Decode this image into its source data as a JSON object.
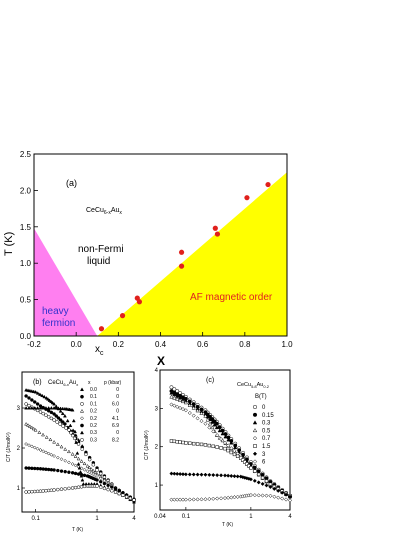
{
  "figure": {
    "panel_a": {
      "label": "(a)",
      "compound": "CeCu",
      "compound_sub1": "6-x",
      "compound_mid": "Au",
      "compound_sub2": "x",
      "xlabel": "X",
      "ylabel": "T (K)",
      "xticks": [
        "-0.2",
        "0.0",
        "0.2",
        "0.4",
        "0.6",
        "0.8",
        "1.0"
      ],
      "yticks": [
        "0.0",
        "0.5",
        "1.0",
        "1.5",
        "2.0",
        "2.5"
      ],
      "xc_label": "x",
      "xc_sub": "c",
      "region_nfl_1": "non-Fermi",
      "region_nfl_2": "liquid",
      "region_hf_1": "heavy",
      "region_hf_2": "fermion",
      "region_af": "AF magnetic order",
      "colors": {
        "heavy_fermion": "#ff7ff0",
        "af": "#ffff00",
        "points": "#e0201c",
        "hf_text": "#3333cc",
        "af_text": "#e02020"
      }
    },
    "panel_b": {
      "label": "(b)",
      "compound": "CeCu",
      "compound_sub1": "6-x",
      "compound_mid": "Au",
      "compound_sub2": "x",
      "col_x": "x",
      "col_p": "p (kbar)",
      "legend_x": [
        "0.0",
        "0.1",
        "0.1",
        "0.2",
        "0.2",
        "0.2",
        "0.3",
        "0.3"
      ],
      "legend_p": [
        "0",
        "0",
        "6.0",
        "0",
        "4.1",
        "6.9",
        "0",
        "8.2"
      ],
      "ylabel": "C/T (J/molK²)",
      "xlabel": "T (K)",
      "xticks": [
        "0.1",
        "1",
        "4"
      ],
      "yticks": [
        "1",
        "2",
        "3"
      ]
    },
    "panel_c": {
      "label": "(c)",
      "compound": "CeCu",
      "compound_sub1": "5.8",
      "compound_mid": "Au",
      "compound_sub2": "0.2",
      "col_b": "B(T)",
      "legend_b": [
        "0",
        "0.15",
        "0.3",
        "0.5",
        "0.7",
        "1.5",
        "3",
        "6"
      ],
      "ylabel": "C/T (J/molK²)",
      "xlabel": "T (K)",
      "xticks": [
        "0.04",
        "0.1",
        "1",
        "4"
      ],
      "yticks": [
        "1",
        "2",
        "3",
        "4"
      ]
    }
  },
  "chart_data": [
    {
      "type": "scatter",
      "title": "",
      "xlabel": "X",
      "ylabel": "T (K)",
      "xlim": [
        -0.2,
        1.0
      ],
      "ylim": [
        0.0,
        2.5
      ],
      "series": [
        {
          "name": "",
          "points": [
            [
              0.12,
              0.1
            ],
            [
              0.22,
              0.28
            ],
            [
              0.29,
              0.52
            ],
            [
              0.3,
              0.47
            ],
            [
              0.5,
              1.15
            ],
            [
              0.5,
              0.96
            ],
            [
              0.66,
              1.48
            ],
            [
              0.67,
              1.4
            ],
            [
              0.81,
              1.9
            ],
            [
              0.91,
              2.08
            ]
          ]
        }
      ],
      "regions": [
        {
          "label": "heavy fermion",
          "boundary_x": [
            -0.2,
            -0.2,
            0.1
          ],
          "boundary_y": [
            1.48,
            0.0,
            0.0
          ]
        },
        {
          "label": "AF magnetic order",
          "boundary_x": [
            0.1,
            1.0,
            1.0
          ],
          "boundary_y": [
            0.0,
            2.25,
            0.0
          ]
        }
      ]
    },
    {
      "type": "scatter",
      "title": "",
      "xlabel": "T (K)",
      "ylabel": "C/T (J/molK²)",
      "xscale": "log",
      "xlim": [
        0.06,
        4.0
      ],
      "ylim": [
        0.4,
        3.9
      ],
      "series": [
        {
          "name": "x=0.0 p=0",
          "marker": "filled-triangle",
          "points": [
            [
              0.07,
              3.45
            ],
            [
              0.1,
              3.4
            ],
            [
              0.15,
              3.25
            ],
            [
              0.2,
              3.1
            ],
            [
              0.3,
              2.8
            ],
            [
              0.5,
              2.2
            ],
            [
              1.0,
              1.45
            ],
            [
              2.0,
              0.95
            ],
            [
              4.0,
              0.65
            ]
          ]
        },
        {
          "name": "x=0.1 p=0",
          "marker": "filled-circle",
          "points": [
            [
              0.07,
              3.3
            ],
            [
              0.12,
              3.05
            ],
            [
              0.2,
              2.85
            ],
            [
              0.3,
              2.6
            ],
            [
              0.5,
              2.15
            ],
            [
              1.0,
              1.5
            ],
            [
              2.0,
              1.0
            ],
            [
              4.0,
              0.7
            ]
          ]
        },
        {
          "name": "x=0.1 p=6.0",
          "marker": "open-circle",
          "points": [
            [
              0.07,
              3.1
            ],
            [
              0.12,
              2.9
            ],
            [
              0.2,
              2.7
            ],
            [
              0.35,
              2.45
            ],
            [
              0.5,
              2.1
            ],
            [
              1.0,
              1.45
            ],
            [
              2.0,
              1.0
            ],
            [
              4.0,
              0.7
            ]
          ]
        },
        {
          "name": "x=0.2 p=0",
          "marker": "open-triangle",
          "points": [
            [
              0.07,
              2.6
            ],
            [
              0.1,
              2.45
            ],
            [
              0.2,
              2.15
            ],
            [
              0.4,
              1.85
            ],
            [
              0.7,
              1.55
            ],
            [
              1.0,
              1.35
            ],
            [
              2.0,
              1.0
            ],
            [
              4.0,
              0.7
            ]
          ]
        },
        {
          "name": "x=0.2 p=4.1",
          "marker": "open-diamond",
          "points": [
            [
              0.07,
              2.1
            ],
            [
              0.12,
              1.95
            ],
            [
              0.2,
              1.8
            ],
            [
              0.4,
              1.6
            ],
            [
              0.7,
              1.42
            ],
            [
              1.0,
              1.3
            ],
            [
              2.0,
              1.0
            ],
            [
              4.0,
              0.72
            ]
          ]
        },
        {
          "name": "x=0.2 p=6.9",
          "marker": "filled-circle",
          "points": [
            [
              0.07,
              1.5
            ],
            [
              0.12,
              1.48
            ],
            [
              0.2,
              1.45
            ],
            [
              0.4,
              1.38
            ],
            [
              0.7,
              1.3
            ],
            [
              1.0,
              1.2
            ],
            [
              2.0,
              0.98
            ],
            [
              4.0,
              0.72
            ]
          ]
        },
        {
          "name": "x=0.3 p=0",
          "marker": "filled-triangle",
          "points": [
            [
              0.07,
              3.0
            ],
            [
              0.12,
              3.0
            ],
            [
              0.2,
              3.0
            ],
            [
              0.3,
              2.98
            ],
            [
              0.4,
              2.95
            ],
            [
              0.5,
              1.6
            ],
            [
              0.6,
              1.1
            ],
            [
              1.0,
              1.1
            ],
            [
              2.0,
              0.9
            ],
            [
              4.0,
              0.68
            ]
          ]
        },
        {
          "name": "x=0.3 p=8.2",
          "marker": "open-circle",
          "points": [
            [
              0.07,
              0.9
            ],
            [
              0.12,
              0.92
            ],
            [
              0.2,
              0.95
            ],
            [
              0.4,
              1.0
            ],
            [
              0.7,
              1.05
            ],
            [
              1.0,
              1.05
            ],
            [
              2.0,
              0.9
            ],
            [
              4.0,
              0.7
            ]
          ]
        }
      ]
    },
    {
      "type": "scatter",
      "title": "",
      "xlabel": "T (K)",
      "ylabel": "C/T (J/molK²)",
      "xscale": "log",
      "xlim": [
        0.04,
        4.0
      ],
      "ylim": [
        0.35,
        4.0
      ],
      "series": [
        {
          "name": "B=0",
          "marker": "open-circle",
          "points": [
            [
              0.06,
              3.55
            ],
            [
              0.1,
              3.3
            ],
            [
              0.2,
              2.95
            ],
            [
              0.3,
              2.65
            ],
            [
              0.5,
              2.2
            ],
            [
              1.0,
              1.6
            ],
            [
              2.0,
              1.1
            ],
            [
              4.0,
              0.72
            ]
          ]
        },
        {
          "name": "B=0.15",
          "marker": "filled-circle",
          "points": [
            [
              0.06,
              3.45
            ],
            [
              0.1,
              3.25
            ],
            [
              0.2,
              2.9
            ],
            [
              0.3,
              2.6
            ],
            [
              0.5,
              2.15
            ],
            [
              1.0,
              1.55
            ],
            [
              2.0,
              1.08
            ],
            [
              4.0,
              0.7
            ]
          ]
        },
        {
          "name": "B=0.3",
          "marker": "filled-triangle",
          "points": [
            [
              0.06,
              3.4
            ],
            [
              0.1,
              3.2
            ],
            [
              0.2,
              2.85
            ],
            [
              0.3,
              2.5
            ],
            [
              0.5,
              2.1
            ],
            [
              1.0,
              1.5
            ],
            [
              2.0,
              1.05
            ],
            [
              4.0,
              0.7
            ]
          ]
        },
        {
          "name": "B=0.5",
          "marker": "open-triangle",
          "points": [
            [
              0.06,
              3.3
            ],
            [
              0.1,
              3.15
            ],
            [
              0.2,
              2.8
            ],
            [
              0.3,
              2.3
            ],
            [
              0.5,
              1.95
            ],
            [
              1.0,
              1.45
            ],
            [
              2.0,
              1.0
            ],
            [
              4.0,
              0.7
            ]
          ]
        },
        {
          "name": "B=0.7",
          "marker": "open-diamond",
          "points": [
            [
              0.06,
              3.1
            ],
            [
              0.1,
              2.95
            ],
            [
              0.2,
              2.6
            ],
            [
              0.4,
              2.1
            ],
            [
              0.7,
              1.75
            ],
            [
              1.0,
              1.45
            ],
            [
              2.0,
              1.0
            ],
            [
              4.0,
              0.7
            ]
          ]
        },
        {
          "name": "B=1.5",
          "marker": "open-square",
          "points": [
            [
              0.06,
              2.15
            ],
            [
              0.1,
              2.1
            ],
            [
              0.2,
              2.05
            ],
            [
              0.4,
              1.95
            ],
            [
              0.7,
              1.7
            ],
            [
              1.0,
              1.45
            ],
            [
              2.0,
              1.02
            ],
            [
              4.0,
              0.72
            ]
          ]
        },
        {
          "name": "B=3",
          "marker": "filled-diamond",
          "points": [
            [
              0.06,
              1.3
            ],
            [
              0.1,
              1.28
            ],
            [
              0.2,
              1.27
            ],
            [
              0.4,
              1.25
            ],
            [
              0.7,
              1.22
            ],
            [
              1.0,
              1.15
            ],
            [
              2.0,
              0.95
            ],
            [
              4.0,
              0.7
            ]
          ]
        },
        {
          "name": "B=6",
          "marker": "open-diamond",
          "points": [
            [
              0.06,
              0.62
            ],
            [
              0.1,
              0.62
            ],
            [
              0.2,
              0.63
            ],
            [
              0.4,
              0.66
            ],
            [
              0.7,
              0.7
            ],
            [
              1.0,
              0.74
            ],
            [
              2.0,
              0.72
            ],
            [
              4.0,
              0.6
            ]
          ]
        }
      ]
    }
  ]
}
